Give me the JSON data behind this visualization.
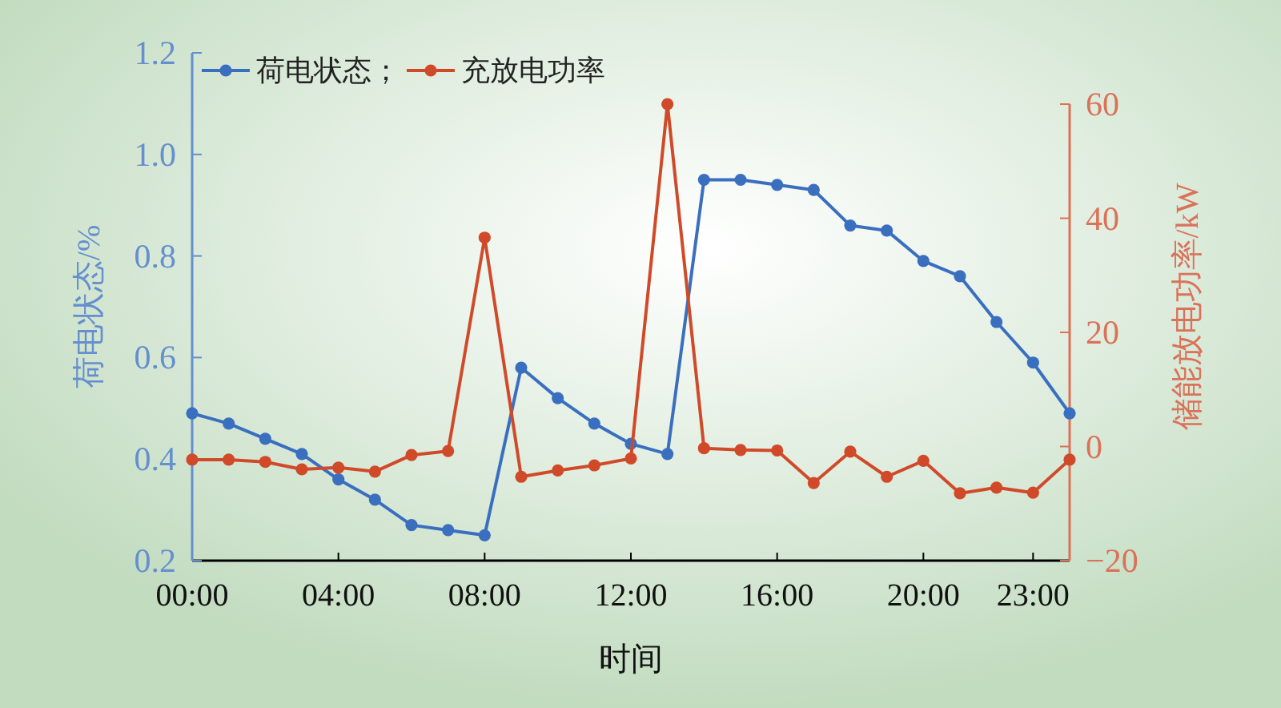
{
  "chart_data": {
    "type": "line",
    "xlabel": "时间",
    "ylabel": "荷电状态/%",
    "y2label": "储能放电功率/kW",
    "legend": "top left",
    "marker": "circle",
    "x": [
      0,
      1,
      2,
      3,
      4,
      5,
      6,
      7,
      8,
      9,
      10,
      11,
      12,
      13,
      14,
      15,
      16,
      17,
      18,
      19,
      20,
      21,
      22,
      23,
      24
    ],
    "xlim": [
      0,
      24
    ],
    "xticks": [
      {
        "value": 0,
        "label": "00:00"
      },
      {
        "value": 4,
        "label": "04:00"
      },
      {
        "value": 8,
        "label": "08:00"
      },
      {
        "value": 12,
        "label": "12:00"
      },
      {
        "value": 16,
        "label": "16:00"
      },
      {
        "value": 20,
        "label": "20:00"
      },
      {
        "value": 23,
        "label": "23:00"
      }
    ],
    "ylim": [
      0.2,
      1.2
    ],
    "yticks": [
      0.2,
      0.4,
      0.6,
      0.8,
      {
        "value": 1.0,
        "label": "1.0"
      },
      1.2
    ],
    "y2lim": [
      -20,
      60
    ],
    "y2ticks": [
      {
        "value": -20,
        "label": "−20"
      },
      0,
      20,
      40,
      60
    ],
    "series": [
      {
        "name": "荷电状态；",
        "color": "#3a6fc0",
        "values": [
          0.49,
          0.47,
          0.44,
          0.41,
          0.36,
          0.32,
          0.27,
          0.26,
          0.25,
          0.58,
          0.52,
          0.47,
          0.43,
          0.41,
          0.95,
          0.95,
          0.94,
          0.93,
          0.86,
          0.85,
          0.79,
          0.76,
          0.67,
          0.59,
          0.49
        ]
      },
      {
        "name": "充放电功率",
        "color": "#d04a2a",
        "axis": "y2",
        "values": [
          -2.3,
          -2.3,
          -2.7,
          -4.0,
          -3.7,
          -4.4,
          -1.5,
          -0.8,
          36.6,
          -5.3,
          -4.2,
          -3.3,
          -2.1,
          60,
          -0.3,
          -0.6,
          -0.7,
          -6.4,
          -0.9,
          -5.3,
          -2.5,
          -8.2,
          -7.2,
          -8.1,
          -2.3
        ]
      }
    ]
  }
}
